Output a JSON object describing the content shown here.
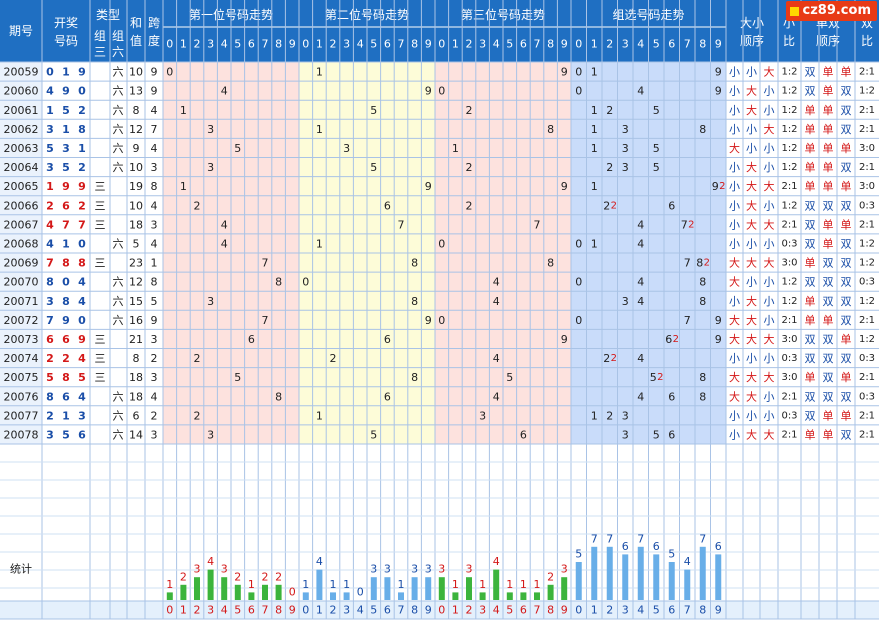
{
  "watermark": "cz89.com",
  "headers": {
    "period": "期号",
    "draw_a": "开奖",
    "draw_b": "号码",
    "type": "类型",
    "type_g3_a": "组",
    "type_g3_b": "三",
    "type_g6_a": "组",
    "type_g6_b": "六",
    "sum_a": "和",
    "sum_b": "值",
    "span_a": "跨",
    "span_b": "度",
    "pos1": "第一位号码走势",
    "pos2": "第二位号码走势",
    "pos3": "第三位号码走势",
    "group": "组选号码走势",
    "bigsmall_a": "大小",
    "bigsmall_b": "顺序",
    "bs_ratio_a": "小",
    "bs_ratio_b": "比",
    "oddeven_a": "单双",
    "oddeven_b": "顺序",
    "oe_ratio_a": "双",
    "oe_ratio_b": "比",
    "digits": [
      "0",
      "1",
      "2",
      "3",
      "4",
      "5",
      "6",
      "7",
      "8",
      "9"
    ]
  },
  "labels": {
    "stats": "统计"
  },
  "colors": {
    "header_bg": "#1f6fc2",
    "header_text": "#ffffff",
    "pos1_bg": "#fde2de",
    "pos2_bg": "#fdfcd8",
    "pos3_bg": "#fde2de",
    "group_bg": "#c9dcfa",
    "period_bg": "#eaf2fc",
    "grid": "#bcd0ea",
    "draw_text": "#1a4ea8",
    "red": "#d41818",
    "green_bar": "#3cb43c",
    "blue_bar": "#68aee8",
    "dark_text": "#222222"
  },
  "chart_data": {
    "type": "table",
    "rows": [
      {
        "period": "20059",
        "draw": [
          "0",
          "1",
          "9"
        ],
        "type": "六",
        "sum": "10",
        "span": "9",
        "group": [
          "0",
          "1",
          "9"
        ],
        "dup": "",
        "bigsmall": [
          "小",
          "小",
          "大"
        ],
        "bs_ratio": "1:2",
        "oddeven": [
          "双",
          "单",
          "单"
        ],
        "oe_ratio": "2:1"
      },
      {
        "period": "20060",
        "draw": [
          "4",
          "9",
          "0"
        ],
        "type": "六",
        "sum": "13",
        "span": "9",
        "group": [
          "0",
          "4",
          "9"
        ],
        "dup": "",
        "bigsmall": [
          "小",
          "大",
          "小"
        ],
        "bs_ratio": "1:2",
        "oddeven": [
          "双",
          "单",
          "双"
        ],
        "oe_ratio": "1:2"
      },
      {
        "period": "20061",
        "draw": [
          "1",
          "5",
          "2"
        ],
        "type": "六",
        "sum": "8",
        "span": "4",
        "group": [
          "1",
          "2",
          "5"
        ],
        "dup": "",
        "bigsmall": [
          "小",
          "大",
          "小"
        ],
        "bs_ratio": "1:2",
        "oddeven": [
          "单",
          "单",
          "双"
        ],
        "oe_ratio": "2:1"
      },
      {
        "period": "20062",
        "draw": [
          "3",
          "1",
          "8"
        ],
        "type": "六",
        "sum": "12",
        "span": "7",
        "group": [
          "1",
          "3",
          "8"
        ],
        "dup": "",
        "bigsmall": [
          "小",
          "小",
          "大"
        ],
        "bs_ratio": "1:2",
        "oddeven": [
          "单",
          "单",
          "双"
        ],
        "oe_ratio": "2:1"
      },
      {
        "period": "20063",
        "draw": [
          "5",
          "3",
          "1"
        ],
        "type": "六",
        "sum": "9",
        "span": "4",
        "group": [
          "1",
          "3",
          "5"
        ],
        "dup": "",
        "bigsmall": [
          "大",
          "小",
          "小"
        ],
        "bs_ratio": "1:2",
        "oddeven": [
          "单",
          "单",
          "单"
        ],
        "oe_ratio": "3:0"
      },
      {
        "period": "20064",
        "draw": [
          "3",
          "5",
          "2"
        ],
        "type": "六",
        "sum": "10",
        "span": "3",
        "group": [
          "2",
          "3",
          "5"
        ],
        "dup": "",
        "bigsmall": [
          "小",
          "大",
          "小"
        ],
        "bs_ratio": "1:2",
        "oddeven": [
          "单",
          "单",
          "双"
        ],
        "oe_ratio": "2:1"
      },
      {
        "period": "20065",
        "draw": [
          "1",
          "9",
          "9"
        ],
        "type": "三",
        "sum": "19",
        "span": "8",
        "group": [
          "1",
          "9"
        ],
        "dup": "9",
        "bigsmall": [
          "小",
          "大",
          "大"
        ],
        "bs_ratio": "2:1",
        "oddeven": [
          "单",
          "单",
          "单"
        ],
        "oe_ratio": "3:0"
      },
      {
        "period": "20066",
        "draw": [
          "2",
          "6",
          "2"
        ],
        "type": "三",
        "sum": "10",
        "span": "4",
        "group": [
          "2",
          "6"
        ],
        "dup": "2",
        "bigsmall": [
          "小",
          "大",
          "小"
        ],
        "bs_ratio": "1:2",
        "oddeven": [
          "双",
          "双",
          "双"
        ],
        "oe_ratio": "0:3"
      },
      {
        "period": "20067",
        "draw": [
          "4",
          "7",
          "7"
        ],
        "type": "三",
        "sum": "18",
        "span": "3",
        "group": [
          "4",
          "7"
        ],
        "dup": "7",
        "bigsmall": [
          "小",
          "大",
          "大"
        ],
        "bs_ratio": "2:1",
        "oddeven": [
          "双",
          "单",
          "单"
        ],
        "oe_ratio": "2:1"
      },
      {
        "period": "20068",
        "draw": [
          "4",
          "1",
          "0"
        ],
        "type": "六",
        "sum": "5",
        "span": "4",
        "group": [
          "0",
          "1",
          "4"
        ],
        "dup": "",
        "bigsmall": [
          "小",
          "小",
          "小"
        ],
        "bs_ratio": "0:3",
        "oddeven": [
          "双",
          "单",
          "双"
        ],
        "oe_ratio": "1:2"
      },
      {
        "period": "20069",
        "draw": [
          "7",
          "8",
          "8"
        ],
        "type": "三",
        "sum": "23",
        "span": "1",
        "group": [
          "7",
          "8"
        ],
        "dup": "8",
        "bigsmall": [
          "大",
          "大",
          "大"
        ],
        "bs_ratio": "3:0",
        "oddeven": [
          "单",
          "双",
          "双"
        ],
        "oe_ratio": "1:2"
      },
      {
        "period": "20070",
        "draw": [
          "8",
          "0",
          "4"
        ],
        "type": "六",
        "sum": "12",
        "span": "8",
        "group": [
          "0",
          "4",
          "8"
        ],
        "dup": "",
        "bigsmall": [
          "大",
          "小",
          "小"
        ],
        "bs_ratio": "1:2",
        "oddeven": [
          "双",
          "双",
          "双"
        ],
        "oe_ratio": "0:3"
      },
      {
        "period": "20071",
        "draw": [
          "3",
          "8",
          "4"
        ],
        "type": "六",
        "sum": "15",
        "span": "5",
        "group": [
          "3",
          "4",
          "8"
        ],
        "dup": "",
        "bigsmall": [
          "小",
          "大",
          "小"
        ],
        "bs_ratio": "1:2",
        "oddeven": [
          "单",
          "双",
          "双"
        ],
        "oe_ratio": "1:2"
      },
      {
        "period": "20072",
        "draw": [
          "7",
          "9",
          "0"
        ],
        "type": "六",
        "sum": "16",
        "span": "9",
        "group": [
          "0",
          "7",
          "9"
        ],
        "dup": "",
        "bigsmall": [
          "大",
          "大",
          "小"
        ],
        "bs_ratio": "2:1",
        "oddeven": [
          "单",
          "单",
          "双"
        ],
        "oe_ratio": "2:1"
      },
      {
        "period": "20073",
        "draw": [
          "6",
          "6",
          "9"
        ],
        "type": "三",
        "sum": "21",
        "span": "3",
        "group": [
          "6",
          "9"
        ],
        "dup": "6",
        "bigsmall": [
          "大",
          "大",
          "大"
        ],
        "bs_ratio": "3:0",
        "oddeven": [
          "双",
          "双",
          "单"
        ],
        "oe_ratio": "1:2"
      },
      {
        "period": "20074",
        "draw": [
          "2",
          "2",
          "4"
        ],
        "type": "三",
        "sum": "8",
        "span": "2",
        "group": [
          "2",
          "4"
        ],
        "dup": "2",
        "bigsmall": [
          "小",
          "小",
          "小"
        ],
        "bs_ratio": "0:3",
        "oddeven": [
          "双",
          "双",
          "双"
        ],
        "oe_ratio": "0:3"
      },
      {
        "period": "20075",
        "draw": [
          "5",
          "8",
          "5"
        ],
        "type": "三",
        "sum": "18",
        "span": "3",
        "group": [
          "5",
          "8"
        ],
        "dup": "5",
        "bigsmall": [
          "大",
          "大",
          "大"
        ],
        "bs_ratio": "3:0",
        "oddeven": [
          "单",
          "双",
          "单"
        ],
        "oe_ratio": "2:1"
      },
      {
        "period": "20076",
        "draw": [
          "8",
          "6",
          "4"
        ],
        "type": "六",
        "sum": "18",
        "span": "4",
        "group": [
          "4",
          "6",
          "8"
        ],
        "dup": "",
        "bigsmall": [
          "大",
          "大",
          "小"
        ],
        "bs_ratio": "2:1",
        "oddeven": [
          "双",
          "双",
          "双"
        ],
        "oe_ratio": "0:3"
      },
      {
        "period": "20077",
        "draw": [
          "2",
          "1",
          "3"
        ],
        "type": "六",
        "sum": "6",
        "span": "2",
        "group": [
          "1",
          "2",
          "3"
        ],
        "dup": "",
        "bigsmall": [
          "小",
          "小",
          "小"
        ],
        "bs_ratio": "0:3",
        "oddeven": [
          "双",
          "单",
          "单"
        ],
        "oe_ratio": "2:1"
      },
      {
        "period": "20078",
        "draw": [
          "3",
          "5",
          "6"
        ],
        "type": "六",
        "sum": "14",
        "span": "3",
        "group": [
          "3",
          "5",
          "6"
        ],
        "dup": "",
        "bigsmall": [
          "小",
          "大",
          "大"
        ],
        "bs_ratio": "2:1",
        "oddeven": [
          "单",
          "单",
          "双"
        ],
        "oe_ratio": "2:1"
      }
    ],
    "stats": {
      "pos1": [
        1,
        2,
        3,
        4,
        3,
        2,
        1,
        2,
        2,
        0
      ],
      "pos2": [
        1,
        4,
        1,
        1,
        0,
        3,
        3,
        1,
        3,
        3
      ],
      "pos3": [
        3,
        1,
        3,
        1,
        4,
        1,
        1,
        1,
        2,
        3
      ],
      "group": [
        5,
        7,
        7,
        6,
        7,
        6,
        5,
        4,
        7,
        6
      ]
    }
  }
}
